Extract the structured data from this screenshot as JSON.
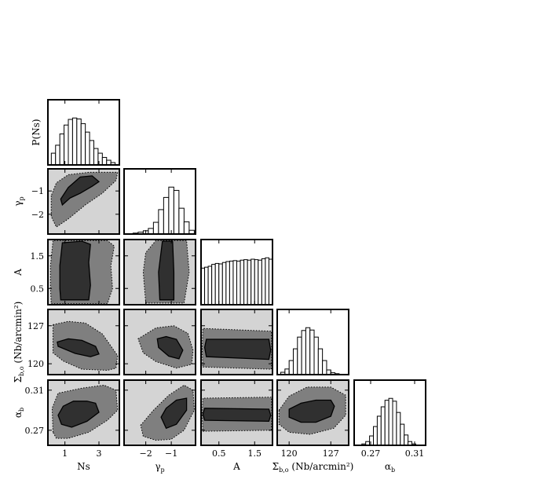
{
  "chart_data": {
    "type": "corner",
    "parameters": [
      {
        "key": "Ns",
        "label": "Ns",
        "range": [
          0,
          4.2
        ],
        "ticks": [
          1,
          3
        ],
        "tick_labels": [
          "1",
          "3"
        ]
      },
      {
        "key": "gamma_p",
        "label": "γ_p",
        "range": [
          -2.85,
          -0.05
        ],
        "ticks": [
          -2,
          -1
        ],
        "tick_labels": [
          "−2",
          "−1"
        ]
      },
      {
        "key": "A",
        "label": "A",
        "range": [
          0,
          2
        ],
        "ticks": [
          0.5,
          1.5
        ],
        "tick_labels": [
          "0.5",
          "1.5"
        ]
      },
      {
        "key": "Sigma_bo",
        "label": "Σ_b,o (Nb/arcmin²)",
        "range": [
          118,
          130
        ],
        "ticks": [
          120,
          127
        ],
        "tick_labels": [
          "120",
          "127"
        ]
      },
      {
        "key": "alpha_b",
        "label": "α_b",
        "range": [
          0.255,
          0.32
        ],
        "ticks": [
          0.27,
          0.31
        ],
        "tick_labels": [
          "0.27",
          "0.31"
        ]
      }
    ],
    "diagonal_ylabel_first": "P(Ns)",
    "histograms": [
      {
        "param": "Ns",
        "bins": [
          0.2,
          0.45,
          0.7,
          0.95,
          1.2,
          1.45,
          1.7,
          1.95,
          2.2,
          2.45,
          2.7,
          2.95,
          3.2,
          3.45,
          3.7,
          3.95
        ],
        "heights": [
          0.25,
          0.42,
          0.66,
          0.85,
          0.97,
          1.0,
          0.98,
          0.88,
          0.7,
          0.52,
          0.35,
          0.25,
          0.16,
          0.1,
          0.05
        ]
      },
      {
        "param": "gamma_p",
        "bins": [
          -2.5,
          -2.3,
          -2.1,
          -1.9,
          -1.7,
          -1.5,
          -1.3,
          -1.1,
          -0.9,
          -0.7,
          -0.5,
          -0.3,
          -0.1
        ],
        "heights": [
          0.02,
          0.04,
          0.07,
          0.12,
          0.25,
          0.52,
          0.78,
          1.0,
          0.93,
          0.55,
          0.26,
          0.08
        ]
      },
      {
        "param": "A",
        "bins": [
          0.0,
          0.1,
          0.2,
          0.3,
          0.4,
          0.5,
          0.6,
          0.7,
          0.8,
          0.9,
          1.0,
          1.1,
          1.2,
          1.3,
          1.4,
          1.5,
          1.6,
          1.7,
          1.8,
          1.9,
          2.0
        ],
        "heights": [
          0.78,
          0.8,
          0.82,
          0.86,
          0.88,
          0.87,
          0.9,
          0.92,
          0.93,
          0.94,
          0.93,
          0.95,
          0.96,
          0.95,
          0.97,
          0.96,
          0.95,
          0.98,
          1.0,
          0.97
        ]
      },
      {
        "param": "Sigma_bo",
        "bins": [
          118.6,
          119.3,
          120.0,
          120.7,
          121.4,
          122.1,
          122.8,
          123.5,
          124.2,
          124.9,
          125.6,
          126.3,
          127.0,
          127.7,
          128.4
        ],
        "heights": [
          0.05,
          0.12,
          0.3,
          0.55,
          0.8,
          0.94,
          1.0,
          0.95,
          0.8,
          0.55,
          0.3,
          0.1,
          0.04,
          0.02
        ]
      },
      {
        "param": "alpha_b",
        "bins": [
          0.262,
          0.2655,
          0.269,
          0.2725,
          0.276,
          0.2795,
          0.283,
          0.2865,
          0.29,
          0.2935,
          0.297,
          0.3005,
          0.304,
          0.3075,
          0.311
        ],
        "heights": [
          0.03,
          0.08,
          0.2,
          0.4,
          0.62,
          0.82,
          0.96,
          1.0,
          0.94,
          0.7,
          0.45,
          0.22,
          0.08,
          0.03
        ]
      }
    ],
    "contours": [
      {
        "x": "Ns",
        "y": "gamma_p",
        "inner": [
          [
            0.85,
            -1.6
          ],
          [
            1.3,
            -1.3
          ],
          [
            1.9,
            -1.1
          ],
          [
            2.6,
            -0.8
          ],
          [
            3.0,
            -0.6
          ],
          [
            2.6,
            -0.35
          ],
          [
            1.9,
            -0.4
          ],
          [
            1.2,
            -0.85
          ],
          [
            0.75,
            -1.35
          ]
        ],
        "outer": [
          [
            0.2,
            -1.2
          ],
          [
            0.2,
            -2.1
          ],
          [
            0.5,
            -2.55
          ],
          [
            1.2,
            -2.2
          ],
          [
            2.2,
            -1.6
          ],
          [
            3.2,
            -1.1
          ],
          [
            4.0,
            -0.55
          ],
          [
            4.1,
            -0.2
          ],
          [
            3.4,
            -0.2
          ],
          [
            2.4,
            -0.2
          ],
          [
            1.2,
            -0.3
          ],
          [
            0.5,
            -0.65
          ]
        ]
      },
      {
        "x": "Ns",
        "y": "A",
        "inner": [
          [
            0.75,
            0.15
          ],
          [
            2.4,
            0.15
          ],
          [
            2.5,
            0.6
          ],
          [
            2.4,
            1.3
          ],
          [
            2.5,
            1.85
          ],
          [
            2.0,
            1.95
          ],
          [
            0.85,
            1.9
          ],
          [
            0.7,
            1.2
          ],
          [
            0.7,
            0.5
          ]
        ],
        "outer": [
          [
            0.2,
            0.03
          ],
          [
            3.5,
            0.03
          ],
          [
            3.8,
            0.5
          ],
          [
            3.7,
            1.2
          ],
          [
            3.9,
            1.8
          ],
          [
            3.5,
            1.97
          ],
          [
            0.3,
            1.97
          ],
          [
            0.15,
            1.2
          ],
          [
            0.15,
            0.5
          ]
        ]
      },
      {
        "x": "Ns",
        "y": "Sigma_bo",
        "inner": [
          [
            0.55,
            124.0
          ],
          [
            1.2,
            124.6
          ],
          [
            2.0,
            124.3
          ],
          [
            2.8,
            123.2
          ],
          [
            3.0,
            121.8
          ],
          [
            2.5,
            121.3
          ],
          [
            1.6,
            121.9
          ],
          [
            0.6,
            123.2
          ]
        ],
        "outer": [
          [
            0.3,
            127.2
          ],
          [
            1.2,
            127.8
          ],
          [
            2.2,
            127.5
          ],
          [
            3.2,
            125.5
          ],
          [
            4.1,
            121.5
          ],
          [
            4.0,
            119.2
          ],
          [
            3.5,
            118.8
          ],
          [
            2.0,
            119.0
          ],
          [
            0.9,
            120.5
          ],
          [
            0.3,
            122.0
          ]
        ]
      },
      {
        "x": "Ns",
        "y": "alpha_b",
        "inner": [
          [
            0.6,
            0.285
          ],
          [
            0.9,
            0.294
          ],
          [
            1.5,
            0.299
          ],
          [
            2.3,
            0.299
          ],
          [
            2.8,
            0.297
          ],
          [
            3.0,
            0.288
          ],
          [
            2.3,
            0.279
          ],
          [
            1.4,
            0.273
          ],
          [
            0.8,
            0.276
          ]
        ],
        "outer": [
          [
            0.3,
            0.268
          ],
          [
            0.25,
            0.292
          ],
          [
            0.6,
            0.307
          ],
          [
            2.0,
            0.312
          ],
          [
            3.3,
            0.315
          ],
          [
            4.0,
            0.31
          ],
          [
            4.1,
            0.29
          ],
          [
            3.5,
            0.28
          ],
          [
            2.4,
            0.268
          ],
          [
            1.2,
            0.262
          ],
          [
            0.5,
            0.262
          ]
        ]
      },
      {
        "x": "gamma_p",
        "y": "A",
        "inner": [
          [
            -1.45,
            0.15
          ],
          [
            -0.9,
            0.15
          ],
          [
            -0.9,
            1.0
          ],
          [
            -0.95,
            1.95
          ],
          [
            -1.35,
            1.95
          ],
          [
            -1.5,
            1.0
          ]
        ],
        "outer": [
          [
            -2.0,
            0.05
          ],
          [
            -0.5,
            0.05
          ],
          [
            -0.3,
            1.0
          ],
          [
            -0.4,
            1.97
          ],
          [
            -1.6,
            1.97
          ],
          [
            -2.0,
            1.6
          ],
          [
            -2.1,
            1.0
          ]
        ]
      },
      {
        "x": "gamma_p",
        "y": "Sigma_bo",
        "inner": [
          [
            -1.55,
            124.6
          ],
          [
            -1.2,
            125.0
          ],
          [
            -0.8,
            124.5
          ],
          [
            -0.55,
            122.5
          ],
          [
            -0.7,
            120.9
          ],
          [
            -1.1,
            121.4
          ],
          [
            -1.5,
            123.0
          ]
        ],
        "outer": [
          [
            -2.3,
            124.6
          ],
          [
            -1.6,
            126.6
          ],
          [
            -0.9,
            127.0
          ],
          [
            -0.35,
            125.6
          ],
          [
            -0.15,
            122.5
          ],
          [
            -0.2,
            119.9
          ],
          [
            -0.8,
            119.2
          ],
          [
            -1.6,
            120.4
          ],
          [
            -2.1,
            122.0
          ]
        ]
      },
      {
        "x": "gamma_p",
        "y": "alpha_b",
        "inner": [
          [
            -1.4,
            0.283
          ],
          [
            -1.2,
            0.292
          ],
          [
            -0.8,
            0.3
          ],
          [
            -0.4,
            0.302
          ],
          [
            -0.4,
            0.29
          ],
          [
            -0.8,
            0.276
          ],
          [
            -1.2,
            0.272
          ]
        ],
        "outer": [
          [
            -2.2,
            0.275
          ],
          [
            -1.7,
            0.29
          ],
          [
            -1.1,
            0.305
          ],
          [
            -0.5,
            0.315
          ],
          [
            -0.15,
            0.31
          ],
          [
            -0.1,
            0.29
          ],
          [
            -0.5,
            0.27
          ],
          [
            -1.0,
            0.261
          ],
          [
            -1.6,
            0.26
          ],
          [
            -2.1,
            0.264
          ]
        ]
      },
      {
        "x": "A",
        "y": "Sigma_bo",
        "inner": [
          [
            0.15,
            121.3
          ],
          [
            1.9,
            120.8
          ],
          [
            1.95,
            122.5
          ],
          [
            1.9,
            124.5
          ],
          [
            0.15,
            124.5
          ],
          [
            0.1,
            123.0
          ]
        ],
        "outer": [
          [
            0.05,
            119.4
          ],
          [
            1.97,
            119.0
          ],
          [
            1.98,
            122.5
          ],
          [
            1.97,
            126.0
          ],
          [
            0.05,
            126.5
          ],
          [
            0.03,
            122.5
          ]
        ]
      },
      {
        "x": "A",
        "y": "alpha_b",
        "inner": [
          [
            0.1,
            0.28
          ],
          [
            1.9,
            0.279
          ],
          [
            1.95,
            0.285
          ],
          [
            1.9,
            0.291
          ],
          [
            0.1,
            0.292
          ],
          [
            0.05,
            0.286
          ]
        ],
        "outer": [
          [
            0.05,
            0.269
          ],
          [
            1.97,
            0.27
          ],
          [
            1.98,
            0.286
          ],
          [
            1.97,
            0.303
          ],
          [
            0.05,
            0.302
          ],
          [
            0.03,
            0.286
          ]
        ]
      },
      {
        "x": "Sigma_bo",
        "y": "alpha_b",
        "inner": [
          [
            120.0,
            0.291
          ],
          [
            122.0,
            0.297
          ],
          [
            124.5,
            0.3
          ],
          [
            127.0,
            0.3
          ],
          [
            127.6,
            0.294
          ],
          [
            127.0,
            0.284
          ],
          [
            124.5,
            0.278
          ],
          [
            122.0,
            0.278
          ],
          [
            120.0,
            0.283
          ]
        ],
        "outer": [
          [
            118.3,
            0.29
          ],
          [
            120.0,
            0.304
          ],
          [
            123.0,
            0.313
          ],
          [
            127.0,
            0.313
          ],
          [
            129.5,
            0.305
          ],
          [
            129.5,
            0.285
          ],
          [
            127.5,
            0.272
          ],
          [
            123.5,
            0.266
          ],
          [
            120.0,
            0.268
          ],
          [
            118.3,
            0.276
          ]
        ]
      }
    ],
    "colors": {
      "inner": "#303030",
      "outer": "#7f7f7f",
      "background": "#d4d4d4",
      "histogram_fill": "#ffffff",
      "edge": "#000000"
    }
  }
}
